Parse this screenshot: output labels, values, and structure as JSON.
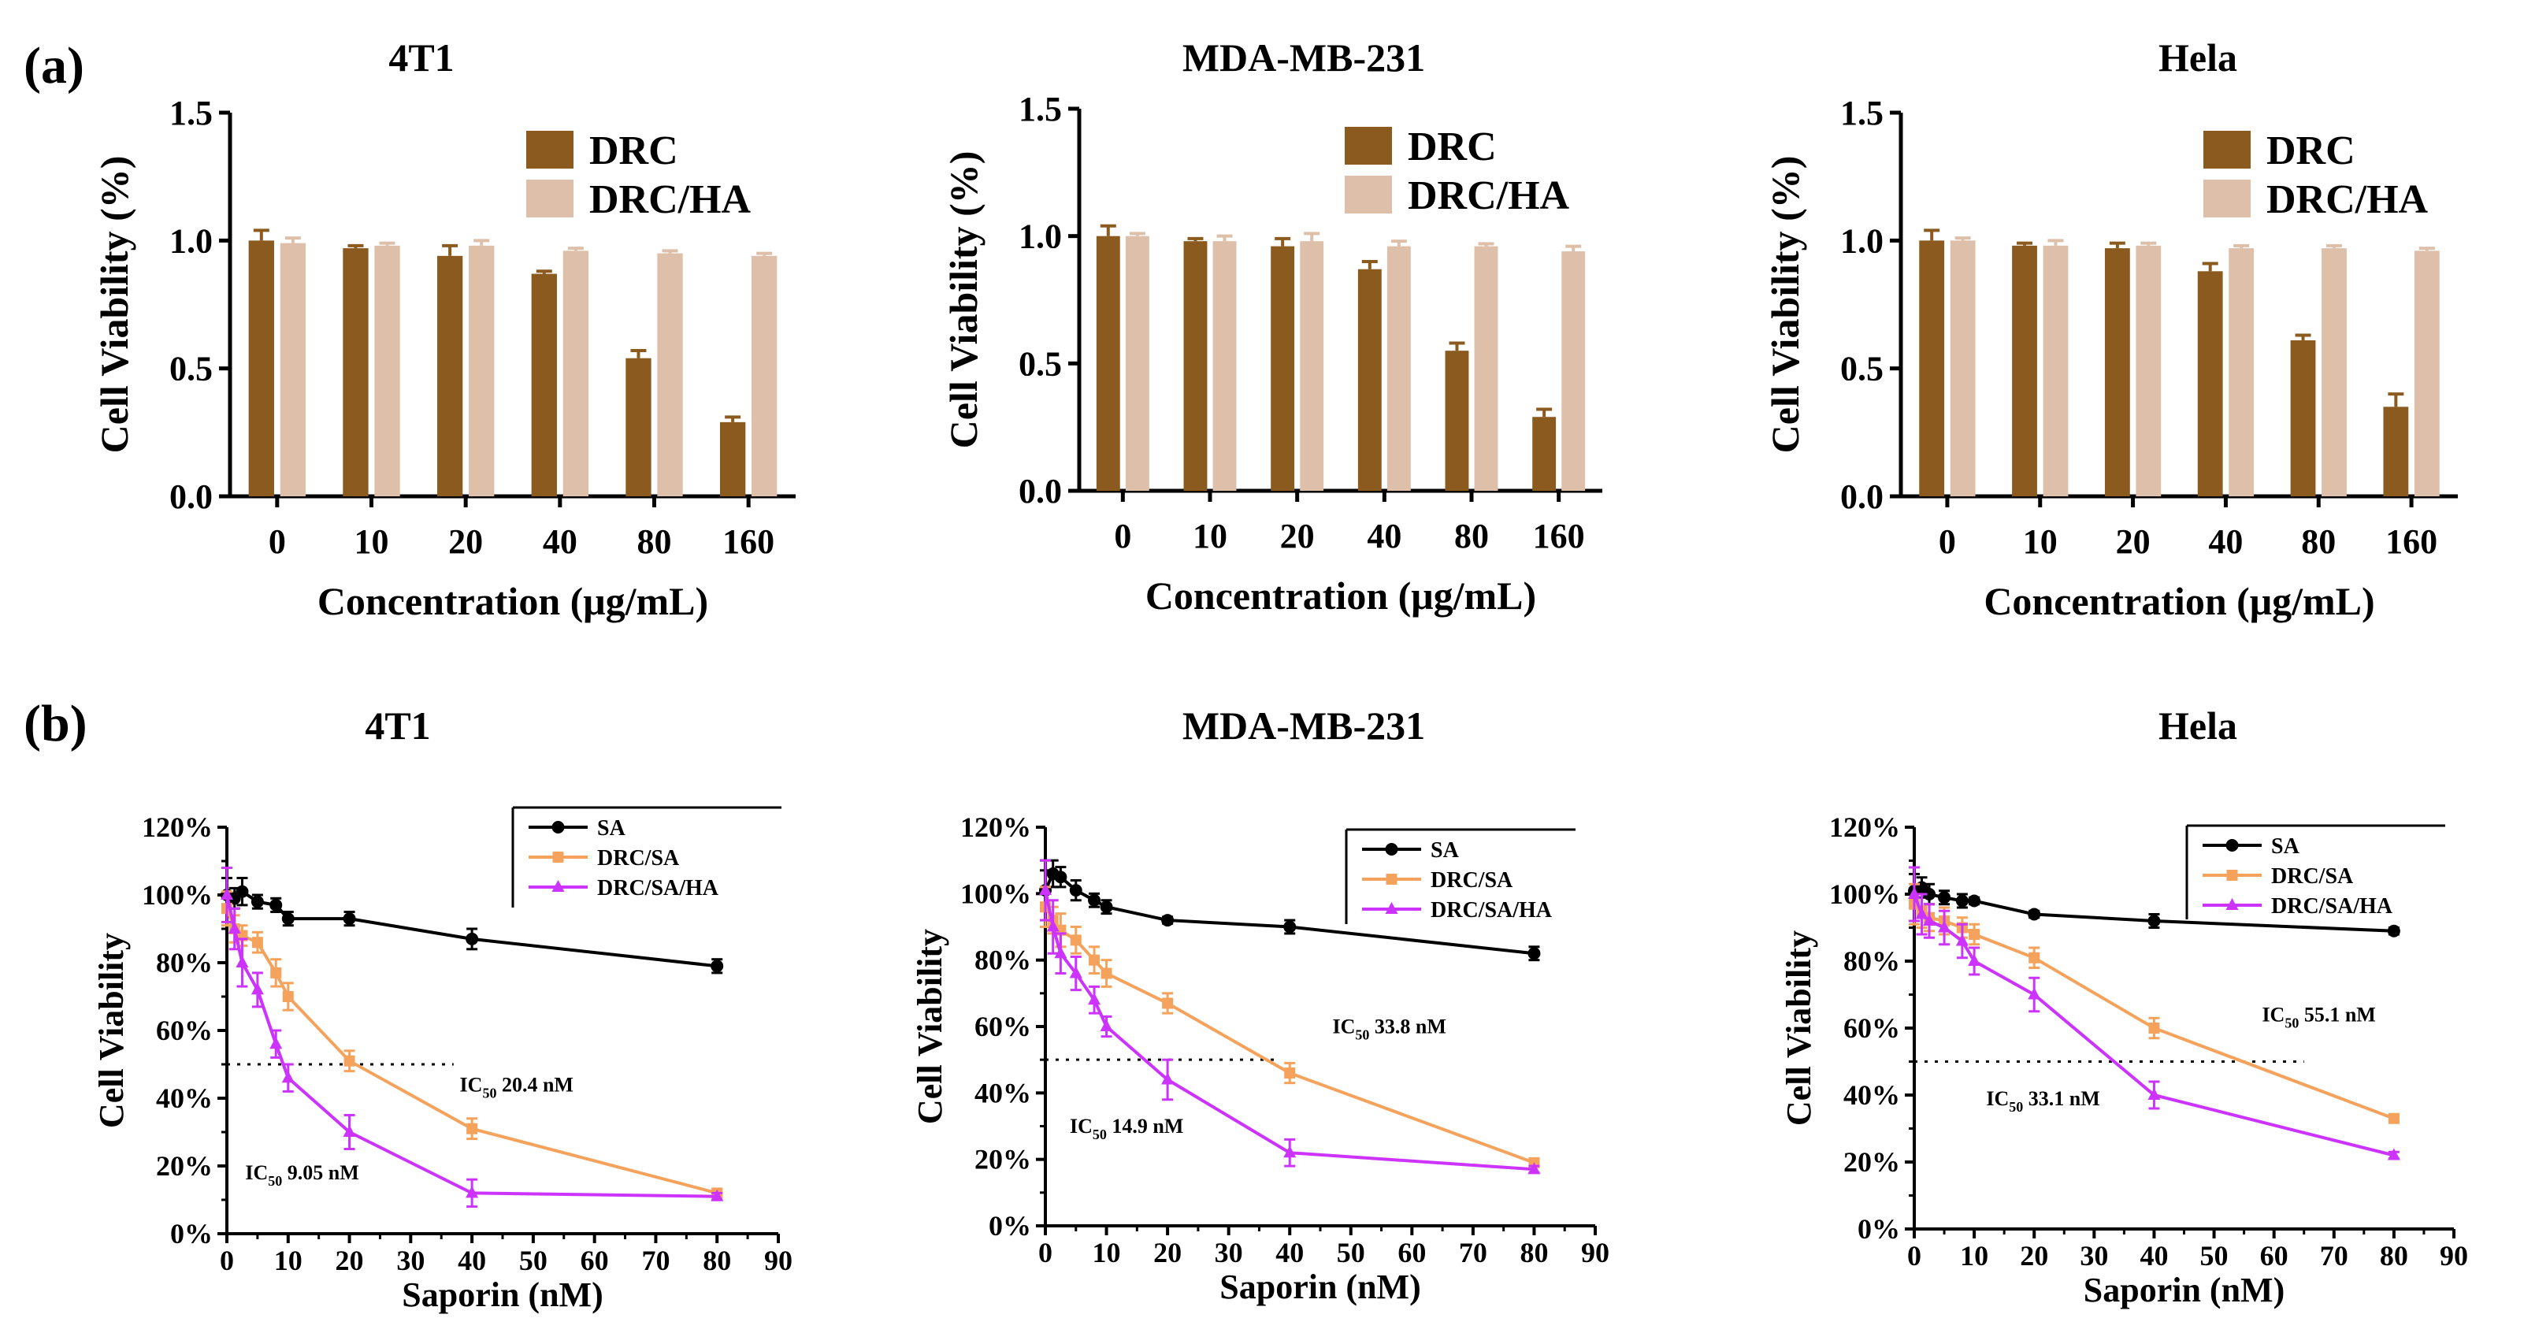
{
  "panels": {
    "a": "(a)",
    "b": "(b)"
  },
  "colors": {
    "drc": "#8B5A1F",
    "drc_ha": "#DDBFAA",
    "sa": "#000000",
    "drc_sa": "#F5A35C",
    "drc_sa_ha": "#CC33FF"
  },
  "chart_data": [
    {
      "type": "bar",
      "panel": "a",
      "title": "4T1",
      "xlabel": "Concentration (μg/mL)",
      "ylabel": "Cell Viability (%)",
      "categories": [
        "0",
        "10",
        "20",
        "40",
        "80",
        "160"
      ],
      "ylim": [
        0,
        1.5
      ],
      "yticks": [
        "0.0",
        "0.5",
        "1.0",
        "1.5"
      ],
      "series": [
        {
          "name": "DRC",
          "values": [
            1.0,
            0.97,
            0.94,
            0.87,
            0.54,
            0.29
          ],
          "errors": [
            0.04,
            0.01,
            0.04,
            0.01,
            0.03,
            0.02
          ]
        },
        {
          "name": "DRC/HA",
          "values": [
            0.99,
            0.98,
            0.98,
            0.96,
            0.95,
            0.94
          ],
          "errors": [
            0.02,
            0.01,
            0.02,
            0.01,
            0.01,
            0.01
          ]
        }
      ]
    },
    {
      "type": "bar",
      "panel": "a",
      "title": "MDA-MB-231",
      "xlabel": "Concentration (μg/mL)",
      "ylabel": "Cell Viability (%)",
      "categories": [
        "0",
        "10",
        "20",
        "40",
        "80",
        "160"
      ],
      "ylim": [
        0,
        1.5
      ],
      "yticks": [
        "0.0",
        "0.5",
        "1.0",
        "1.5"
      ],
      "series": [
        {
          "name": "DRC",
          "values": [
            1.0,
            0.98,
            0.96,
            0.87,
            0.55,
            0.29
          ],
          "errors": [
            0.04,
            0.01,
            0.03,
            0.03,
            0.03,
            0.03
          ]
        },
        {
          "name": "DRC/HA",
          "values": [
            1.0,
            0.98,
            0.98,
            0.96,
            0.96,
            0.94
          ],
          "errors": [
            0.01,
            0.02,
            0.03,
            0.02,
            0.01,
            0.02
          ]
        }
      ]
    },
    {
      "type": "bar",
      "panel": "a",
      "title": "Hela",
      "xlabel": "Concentration (μg/mL)",
      "ylabel": "Cell Viability (%)",
      "categories": [
        "0",
        "10",
        "20",
        "40",
        "80",
        "160"
      ],
      "ylim": [
        0,
        1.5
      ],
      "yticks": [
        "0.0",
        "0.5",
        "1.0",
        "1.5"
      ],
      "series": [
        {
          "name": "DRC",
          "values": [
            1.0,
            0.98,
            0.97,
            0.88,
            0.61,
            0.35
          ],
          "errors": [
            0.04,
            0.01,
            0.02,
            0.03,
            0.02,
            0.05
          ]
        },
        {
          "name": "DRC/HA",
          "values": [
            1.0,
            0.98,
            0.98,
            0.97,
            0.97,
            0.96
          ],
          "errors": [
            0.01,
            0.02,
            0.01,
            0.01,
            0.01,
            0.01
          ]
        }
      ]
    },
    {
      "type": "line",
      "panel": "b",
      "title": "4T1",
      "xlabel": "Saporin (nM)",
      "ylabel": "Cell Viability",
      "xlim": [
        0,
        90
      ],
      "xticks": [
        "0",
        "10",
        "20",
        "30",
        "40",
        "50",
        "60",
        "70",
        "80",
        "90"
      ],
      "ylim": [
        0,
        120
      ],
      "yticks": [
        "0%",
        "20%",
        "40%",
        "60%",
        "80%",
        "100%",
        "120%"
      ],
      "threshold": {
        "y": 50,
        "x_range": [
          0,
          37
        ]
      },
      "annotations": [
        {
          "text_main": "IC",
          "text_sub": "50",
          "text_rest": " 20.4 nM",
          "x": 38,
          "y": 42
        },
        {
          "text_main": "IC",
          "text_sub": "50",
          "text_rest": " 9.05 nM",
          "x": 3,
          "y": 16
        }
      ],
      "series": [
        {
          "name": "SA",
          "x": [
            0,
            1.25,
            2.5,
            5,
            8,
            10,
            20,
            40,
            80
          ],
          "values": [
            100,
            99,
            101,
            98,
            97,
            93,
            93,
            87,
            79
          ],
          "errors": [
            5,
            3,
            4,
            2,
            2,
            2,
            2,
            3,
            2
          ]
        },
        {
          "name": "DRC/SA",
          "x": [
            0,
            1.25,
            2.5,
            5,
            8,
            10,
            20,
            40,
            80
          ],
          "values": [
            96,
            90,
            88,
            86,
            77,
            70,
            51,
            31,
            12
          ],
          "errors": [
            5,
            4,
            3,
            3,
            4,
            4,
            3,
            3,
            1
          ]
        },
        {
          "name": "DRC/SA/HA",
          "x": [
            0,
            1.25,
            2.5,
            5,
            8,
            10,
            20,
            40,
            80
          ],
          "values": [
            100,
            90,
            80,
            72,
            56,
            46,
            30,
            12,
            11
          ],
          "errors": [
            8,
            6,
            7,
            5,
            4,
            4,
            5,
            4,
            1
          ]
        }
      ]
    },
    {
      "type": "line",
      "panel": "b",
      "title": "MDA-MB-231",
      "xlabel": "Saporin (nM)",
      "ylabel": "Cell Viability",
      "xlim": [
        0,
        90
      ],
      "xticks": [
        "0",
        "10",
        "20",
        "30",
        "40",
        "50",
        "60",
        "70",
        "80",
        "90"
      ],
      "ylim": [
        0,
        120
      ],
      "yticks": [
        "0%",
        "20%",
        "40%",
        "60%",
        "80%",
        "100%",
        "120%"
      ],
      "threshold": {
        "y": 50,
        "x_range": [
          0,
          38
        ]
      },
      "annotations": [
        {
          "text_main": "IC",
          "text_sub": "50",
          "text_rest": " 33.8 nM",
          "x": 47,
          "y": 58
        },
        {
          "text_main": "IC",
          "text_sub": "50",
          "text_rest": " 14.9 nM",
          "x": 4,
          "y": 28
        }
      ],
      "series": [
        {
          "name": "SA",
          "x": [
            0,
            1.25,
            2.5,
            5,
            8,
            10,
            20,
            40,
            80
          ],
          "values": [
            101,
            106,
            105,
            101,
            98,
            96,
            92,
            90,
            82
          ],
          "errors": [
            6,
            4,
            3,
            3,
            2,
            2,
            1,
            2,
            2
          ]
        },
        {
          "name": "DRC/SA",
          "x": [
            0,
            1.25,
            2.5,
            5,
            8,
            10,
            20,
            40,
            80
          ],
          "values": [
            96,
            92,
            89,
            86,
            80,
            76,
            67,
            46,
            19
          ],
          "errors": [
            6,
            4,
            5,
            4,
            4,
            4,
            3,
            3,
            1
          ]
        },
        {
          "name": "DRC/SA/HA",
          "x": [
            0,
            1.25,
            2.5,
            5,
            8,
            10,
            20,
            40,
            80
          ],
          "values": [
            101,
            90,
            82,
            76,
            68,
            60,
            44,
            22,
            17
          ],
          "errors": [
            9,
            8,
            6,
            5,
            4,
            3,
            6,
            4,
            1
          ]
        }
      ]
    },
    {
      "type": "line",
      "panel": "b",
      "title": "Hela",
      "xlabel": "Saporin (nM)",
      "ylabel": "Cell Viability",
      "xlim": [
        0,
        90
      ],
      "xticks": [
        "0",
        "10",
        "20",
        "30",
        "40",
        "50",
        "60",
        "70",
        "80",
        "90"
      ],
      "ylim": [
        0,
        120
      ],
      "yticks": [
        "0%",
        "20%",
        "40%",
        "60%",
        "80%",
        "100%",
        "120%"
      ],
      "threshold": {
        "y": 50,
        "x_range": [
          0,
          65
        ]
      },
      "annotations": [
        {
          "text_main": "IC",
          "text_sub": "50",
          "text_rest": " 55.1 nM",
          "x": 58,
          "y": 62
        },
        {
          "text_main": "IC",
          "text_sub": "50",
          "text_rest": " 33.1 nM",
          "x": 12,
          "y": 37
        }
      ],
      "series": [
        {
          "name": "SA",
          "x": [
            0,
            1.25,
            2.5,
            5,
            8,
            10,
            20,
            40,
            80
          ],
          "values": [
            101,
            102,
            100,
            99,
            98,
            98,
            94,
            92,
            89
          ],
          "errors": [
            5,
            3,
            3,
            2,
            2,
            1,
            1,
            2,
            1
          ]
        },
        {
          "name": "DRC/SA",
          "x": [
            0,
            1.25,
            2.5,
            5,
            8,
            10,
            20,
            40,
            80
          ],
          "values": [
            97,
            95,
            93,
            92,
            90,
            88,
            81,
            60,
            33
          ],
          "errors": [
            6,
            5,
            4,
            4,
            3,
            3,
            3,
            3,
            1
          ]
        },
        {
          "name": "DRC/SA/HA",
          "x": [
            0,
            1.25,
            2.5,
            5,
            8,
            10,
            20,
            40,
            80
          ],
          "values": [
            100,
            94,
            92,
            90,
            86,
            80,
            70,
            40,
            22
          ],
          "errors": [
            8,
            6,
            5,
            5,
            5,
            4,
            5,
            4,
            1
          ]
        }
      ]
    }
  ]
}
